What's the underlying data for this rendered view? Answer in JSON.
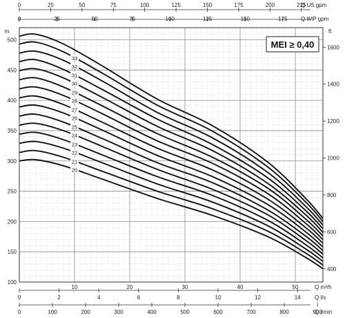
{
  "chart_data": {
    "type": "line",
    "badge": "MEI ≥ 0,40",
    "grid": true,
    "axes": {
      "x_bottom": {
        "label": "Q m³/h",
        "range": [
          0,
          55
        ],
        "ticks": [
          "10",
          "20",
          "30",
          "40",
          "50"
        ]
      },
      "x_bottom2": {
        "label": "Q l/s",
        "ticks": [
          "0",
          "2",
          "4",
          "6",
          "8",
          "10",
          "12",
          "14"
        ]
      },
      "x_bottom3": {
        "label": "Q l/min",
        "ticks": [
          "0",
          "100",
          "200",
          "300",
          "400",
          "500",
          "600",
          "700",
          "800",
          "900"
        ]
      },
      "x_top": {
        "label": "Q US gpm",
        "ticks": [
          "0",
          "25",
          "50",
          "75",
          "100",
          "125",
          "150",
          "175",
          "200",
          "225"
        ]
      },
      "x_top2": {
        "label": "Q IMP gpm",
        "ticks": [
          "0",
          "25",
          "50",
          "75",
          "100",
          "125",
          "150",
          "175"
        ]
      },
      "y_left": {
        "label": "m",
        "range": [
          100,
          520
        ],
        "ticks": [
          "100",
          "150",
          "200",
          "250",
          "300",
          "350",
          "400",
          "450",
          "500"
        ]
      },
      "y_right": {
        "label": "ft",
        "ticks": [
          "400",
          "600",
          "800",
          "1000",
          "1200",
          "1400",
          "1600"
        ]
      }
    },
    "series_note": "pump stages",
    "series": [
      {
        "name": "20",
        "values": [
          [
            0,
            300
          ],
          [
            3,
            302
          ],
          [
            8,
            292
          ],
          [
            15,
            270
          ],
          [
            25,
            238
          ],
          [
            35,
            210
          ],
          [
            45,
            175
          ],
          [
            52,
            140
          ],
          [
            55,
            122
          ]
        ]
      },
      {
        "name": "21",
        "values": [
          [
            0,
            314
          ],
          [
            3,
            317
          ],
          [
            8,
            306
          ],
          [
            15,
            283
          ],
          [
            25,
            250
          ],
          [
            35,
            221
          ],
          [
            45,
            184
          ],
          [
            52,
            147
          ],
          [
            55,
            128
          ]
        ]
      },
      {
        "name": "22",
        "values": [
          [
            0,
            329
          ],
          [
            3,
            332
          ],
          [
            8,
            321
          ],
          [
            15,
            297
          ],
          [
            25,
            262
          ],
          [
            35,
            232
          ],
          [
            45,
            193
          ],
          [
            52,
            154
          ],
          [
            55,
            134
          ]
        ]
      },
      {
        "name": "23",
        "values": [
          [
            0,
            344
          ],
          [
            3,
            347
          ],
          [
            8,
            335
          ],
          [
            15,
            310
          ],
          [
            25,
            274
          ],
          [
            35,
            243
          ],
          [
            45,
            202
          ],
          [
            52,
            161
          ],
          [
            55,
            140
          ]
        ]
      },
      {
        "name": "24",
        "values": [
          [
            0,
            359
          ],
          [
            3,
            362
          ],
          [
            8,
            350
          ],
          [
            15,
            324
          ],
          [
            25,
            286
          ],
          [
            35,
            253
          ],
          [
            45,
            211
          ],
          [
            52,
            168
          ],
          [
            55,
            146
          ]
        ]
      },
      {
        "name": "25",
        "values": [
          [
            0,
            374
          ],
          [
            3,
            377
          ],
          [
            8,
            364
          ],
          [
            15,
            337
          ],
          [
            25,
            297
          ],
          [
            35,
            264
          ],
          [
            45,
            219
          ],
          [
            52,
            175
          ],
          [
            55,
            152
          ]
        ]
      },
      {
        "name": "26",
        "values": [
          [
            0,
            389
          ],
          [
            3,
            392
          ],
          [
            8,
            379
          ],
          [
            15,
            351
          ],
          [
            25,
            309
          ],
          [
            35,
            274
          ],
          [
            45,
            228
          ],
          [
            52,
            182
          ],
          [
            55,
            158
          ]
        ]
      },
      {
        "name": "27",
        "values": [
          [
            0,
            404
          ],
          [
            3,
            407
          ],
          [
            8,
            393
          ],
          [
            15,
            364
          ],
          [
            25,
            321
          ],
          [
            35,
            285
          ],
          [
            45,
            237
          ],
          [
            52,
            189
          ],
          [
            55,
            164
          ]
        ]
      },
      {
        "name": "28",
        "values": [
          [
            0,
            419
          ],
          [
            3,
            422
          ],
          [
            8,
            408
          ],
          [
            15,
            378
          ],
          [
            25,
            333
          ],
          [
            35,
            296
          ],
          [
            45,
            246
          ],
          [
            52,
            196
          ],
          [
            55,
            170
          ]
        ]
      },
      {
        "name": "29",
        "values": [
          [
            0,
            434
          ],
          [
            3,
            437
          ],
          [
            8,
            422
          ],
          [
            15,
            391
          ],
          [
            25,
            345
          ],
          [
            35,
            306
          ],
          [
            45,
            255
          ],
          [
            52,
            203
          ],
          [
            55,
            176
          ]
        ]
      },
      {
        "name": "30",
        "values": [
          [
            0,
            449
          ],
          [
            3,
            452
          ],
          [
            8,
            437
          ],
          [
            15,
            405
          ],
          [
            25,
            357
          ],
          [
            35,
            317
          ],
          [
            45,
            263
          ],
          [
            52,
            210
          ],
          [
            55,
            182
          ]
        ]
      },
      {
        "name": "31",
        "values": [
          [
            0,
            464
          ],
          [
            3,
            467
          ],
          [
            8,
            451
          ],
          [
            15,
            418
          ],
          [
            25,
            369
          ],
          [
            35,
            327
          ],
          [
            45,
            272
          ],
          [
            52,
            217
          ],
          [
            55,
            188
          ]
        ]
      },
      {
        "name": "32",
        "values": [
          [
            0,
            478
          ],
          [
            3,
            481
          ],
          [
            8,
            466
          ],
          [
            15,
            432
          ],
          [
            25,
            380
          ],
          [
            35,
            338
          ],
          [
            45,
            281
          ],
          [
            52,
            224
          ],
          [
            55,
            194
          ]
        ]
      },
      {
        "name": "33",
        "values": [
          [
            0,
            493
          ],
          [
            3,
            496
          ],
          [
            8,
            480
          ],
          [
            15,
            445
          ],
          [
            25,
            392
          ],
          [
            35,
            349
          ],
          [
            45,
            290
          ],
          [
            52,
            231
          ],
          [
            55,
            200
          ]
        ]
      },
      {
        "name": "",
        "values": [
          [
            0,
            506
          ],
          [
            3,
            509
          ],
          [
            8,
            493
          ],
          [
            15,
            457
          ],
          [
            25,
            402
          ],
          [
            35,
            358
          ],
          [
            45,
            298
          ],
          [
            52,
            237
          ],
          [
            55,
            205
          ]
        ]
      }
    ]
  }
}
